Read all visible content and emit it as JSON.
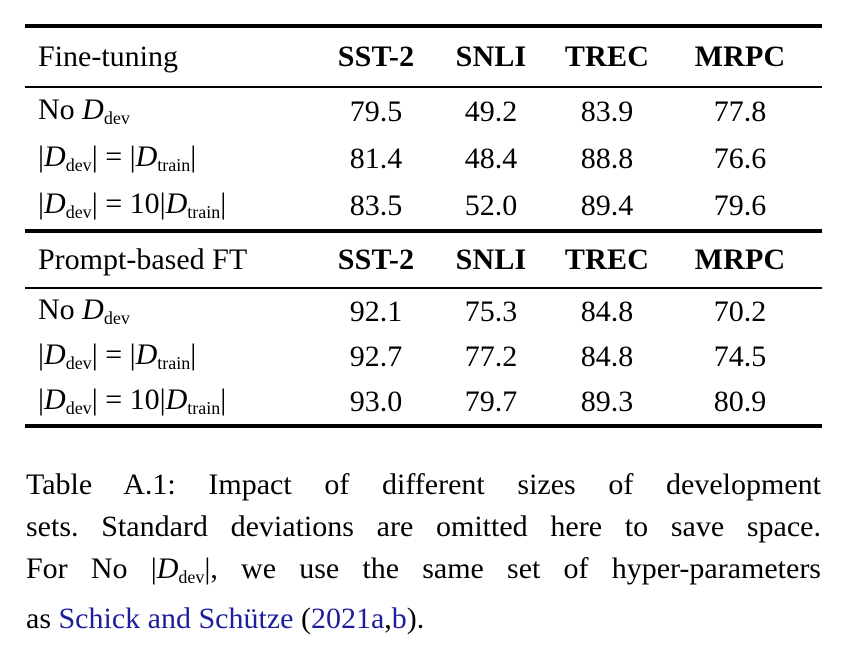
{
  "colors": {
    "text": "#000000",
    "rule": "#000000",
    "citation_link": "#1e1e9c"
  },
  "table": {
    "sections": [
      {
        "header": {
          "label": "Fine-tuning",
          "columns": [
            "SST-2",
            "SNLI",
            "TREC",
            "MRPC"
          ]
        },
        "rows": [
          {
            "label_parts": [
              {
                "t": "No ",
                "s": "plain"
              },
              {
                "t": "D",
                "s": "cal"
              },
              {
                "t": "dev",
                "s": "sub"
              }
            ],
            "values": [
              "79.5",
              "49.2",
              "83.9",
              "77.8"
            ]
          },
          {
            "label_parts": [
              {
                "t": "|",
                "s": "plain"
              },
              {
                "t": "D",
                "s": "cal"
              },
              {
                "t": "dev",
                "s": "sub"
              },
              {
                "t": "| = |",
                "s": "plain"
              },
              {
                "t": "D",
                "s": "cal"
              },
              {
                "t": "train",
                "s": "sub"
              },
              {
                "t": "|",
                "s": "plain"
              }
            ],
            "values": [
              "81.4",
              "48.4",
              "88.8",
              "76.6"
            ]
          },
          {
            "label_parts": [
              {
                "t": "|",
                "s": "plain"
              },
              {
                "t": "D",
                "s": "cal"
              },
              {
                "t": "dev",
                "s": "sub"
              },
              {
                "t": "| = 10|",
                "s": "plain"
              },
              {
                "t": "D",
                "s": "cal"
              },
              {
                "t": "train",
                "s": "sub"
              },
              {
                "t": "|",
                "s": "plain"
              }
            ],
            "values": [
              "83.5",
              "52.0",
              "89.4",
              "79.6"
            ]
          }
        ]
      },
      {
        "header": {
          "label": "Prompt-based FT",
          "columns": [
            "SST-2",
            "SNLI",
            "TREC",
            "MRPC"
          ]
        },
        "rows": [
          {
            "label_parts": [
              {
                "t": "No ",
                "s": "plain"
              },
              {
                "t": "D",
                "s": "cal"
              },
              {
                "t": "dev",
                "s": "sub"
              }
            ],
            "values": [
              "92.1",
              "75.3",
              "84.8",
              "70.2"
            ]
          },
          {
            "label_parts": [
              {
                "t": "|",
                "s": "plain"
              },
              {
                "t": "D",
                "s": "cal"
              },
              {
                "t": "dev",
                "s": "sub"
              },
              {
                "t": "| = |",
                "s": "plain"
              },
              {
                "t": "D",
                "s": "cal"
              },
              {
                "t": "train",
                "s": "sub"
              },
              {
                "t": "|",
                "s": "plain"
              }
            ],
            "values": [
              "92.7",
              "77.2",
              "84.8",
              "74.5"
            ]
          },
          {
            "label_parts": [
              {
                "t": "|",
                "s": "plain"
              },
              {
                "t": "D",
                "s": "cal"
              },
              {
                "t": "dev",
                "s": "sub"
              },
              {
                "t": "| = 10|",
                "s": "plain"
              },
              {
                "t": "D",
                "s": "cal"
              },
              {
                "t": "train",
                "s": "sub"
              },
              {
                "t": "|",
                "s": "plain"
              }
            ],
            "values": [
              "93.0",
              "79.7",
              "89.3",
              "80.9"
            ]
          }
        ]
      }
    ]
  },
  "caption": {
    "lines": [
      {
        "justify": true,
        "parts": [
          {
            "t": "Table A.1: Impact of different sizes of development",
            "s": "plain"
          }
        ]
      },
      {
        "justify": true,
        "parts": [
          {
            "t": "sets. Standard deviations are omitted here to save space.",
            "s": "plain"
          }
        ]
      },
      {
        "justify": true,
        "parts": [
          {
            "t": "For No |",
            "s": "plain"
          },
          {
            "t": "D",
            "s": "cal"
          },
          {
            "t": "dev",
            "s": "sub"
          },
          {
            "t": "|, we use the same set of hyper-parameters",
            "s": "plain"
          }
        ]
      },
      {
        "justify": false,
        "parts": [
          {
            "t": "as ",
            "s": "plain"
          },
          {
            "t": "Schick and Schütze",
            "s": "link"
          },
          {
            "t": " (",
            "s": "plain"
          },
          {
            "t": "2021a",
            "s": "link"
          },
          {
            "t": ",",
            "s": "plain"
          },
          {
            "t": "b",
            "s": "link"
          },
          {
            "t": ").",
            "s": "plain"
          }
        ]
      }
    ]
  }
}
